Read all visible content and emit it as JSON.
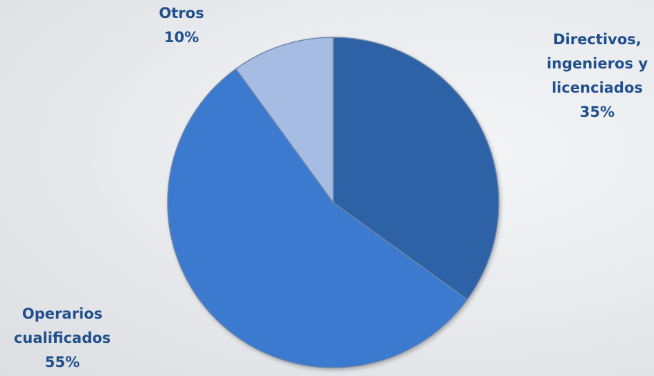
{
  "chart_data": {
    "type": "pie",
    "categories": [
      "Directivos, ingenieros y licenciados",
      "Operarios cualificados",
      "Otros"
    ],
    "values": [
      35,
      55,
      10
    ],
    "value_labels": [
      "35%",
      "55%",
      "10%"
    ],
    "colors": [
      "#2d62a6",
      "#3b7ace",
      "#a6bce3"
    ]
  }
}
